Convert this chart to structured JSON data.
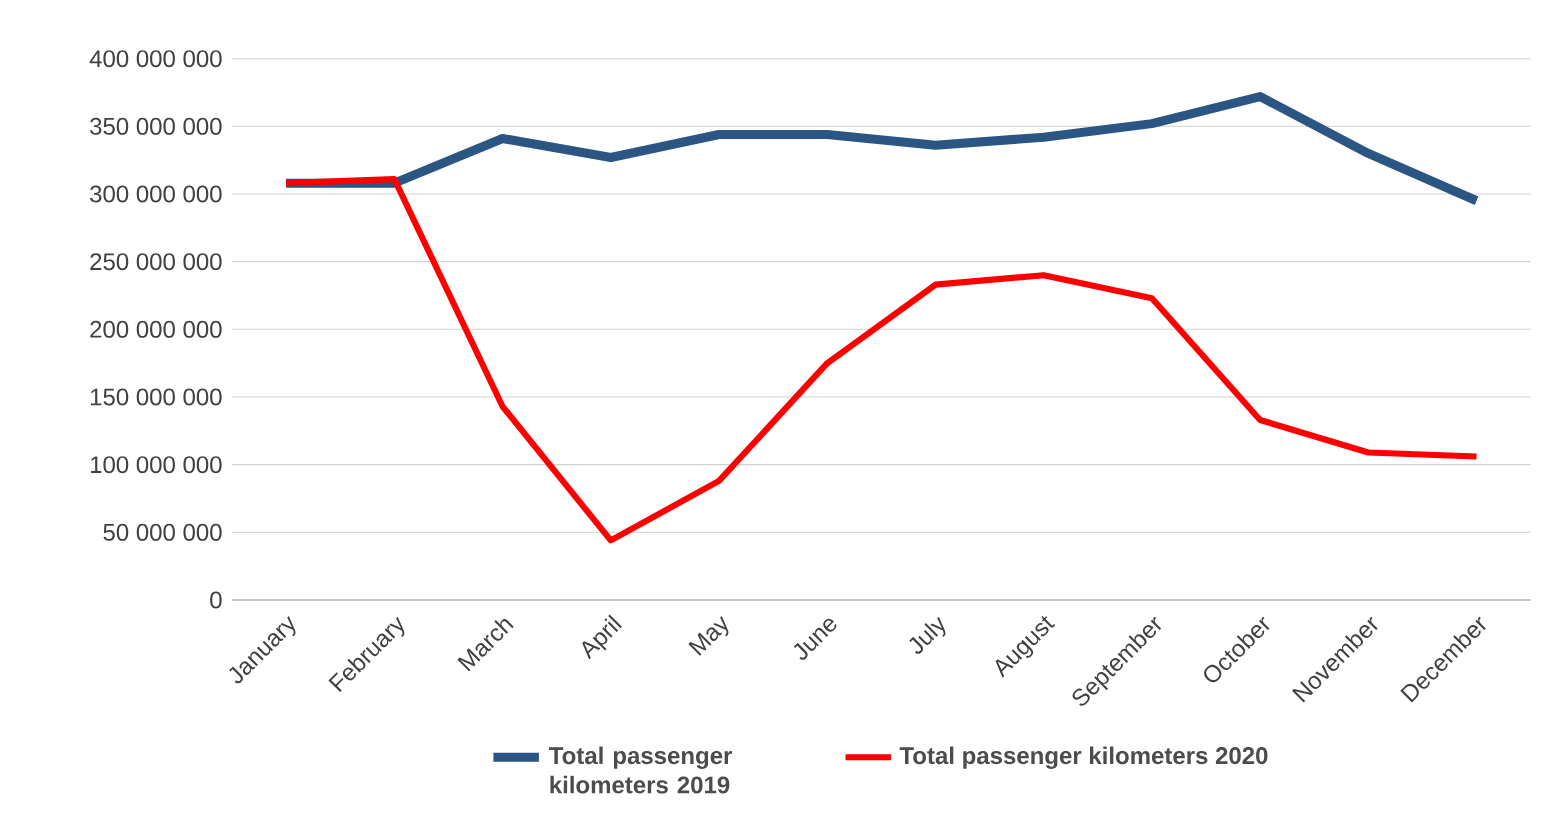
{
  "chart_data": {
    "type": "line",
    "categories": [
      "January",
      "February",
      "March",
      "April",
      "May",
      "June",
      "July",
      "August",
      "September",
      "October",
      "November",
      "December"
    ],
    "series": [
      {
        "name": "Total passenger kilometers 2019",
        "color": "#2b5683",
        "values": [
          308000000,
          308000000,
          341000000,
          327000000,
          344000000,
          344000000,
          336000000,
          342000000,
          352000000,
          372000000,
          330000000,
          295000000
        ]
      },
      {
        "name": "Total passenger kilometers 2020",
        "color": "#ff0000",
        "values": [
          308000000,
          311000000,
          143000000,
          44000000,
          88000000,
          175000000,
          233000000,
          240000000,
          223000000,
          133000000,
          109000000,
          106000000
        ]
      }
    ],
    "ylim": [
      0,
      400000000
    ],
    "yticks": [
      {
        "value": 0,
        "label": "0"
      },
      {
        "value": 50000000,
        "label": "50 000 000"
      },
      {
        "value": 100000000,
        "label": "100 000 000"
      },
      {
        "value": 150000000,
        "label": "150 000 000"
      },
      {
        "value": 200000000,
        "label": "200 000 000"
      },
      {
        "value": 250000000,
        "label": "250 000 000"
      },
      {
        "value": 300000000,
        "label": "300 000 000"
      },
      {
        "value": 350000000,
        "label": "350 000 000"
      },
      {
        "value": 400000000,
        "label": "400 000 000"
      }
    ],
    "grid": "y",
    "legend": "bottom",
    "marker": "none",
    "line_style": "solid"
  }
}
